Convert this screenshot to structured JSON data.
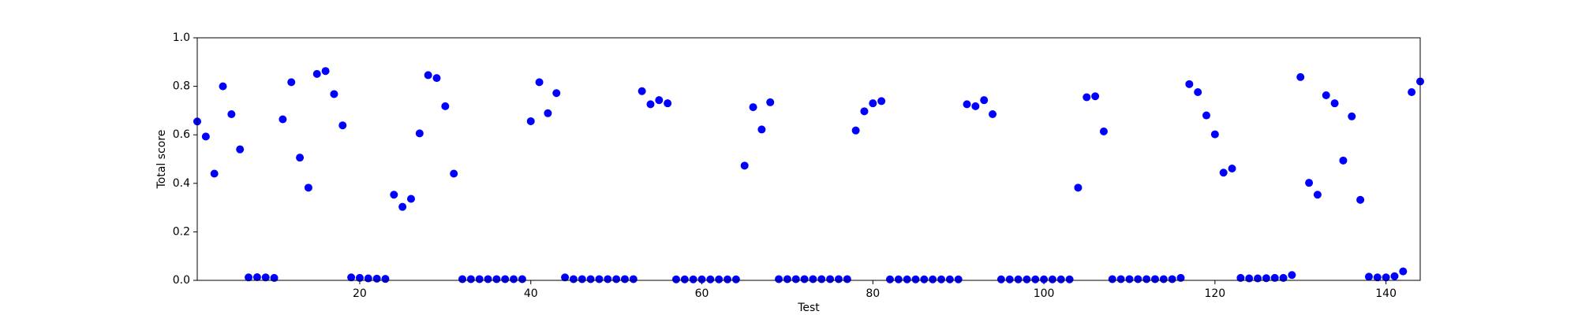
{
  "chart_data": {
    "type": "scatter",
    "xlabel": "Test",
    "ylabel": "Total score",
    "color": "#0000ff",
    "x": [
      1,
      2,
      3,
      4,
      5,
      6,
      7,
      8,
      9,
      10,
      11,
      12,
      13,
      14,
      15,
      16,
      17,
      18,
      19,
      20,
      21,
      22,
      23,
      24,
      25,
      26,
      27,
      28,
      29,
      30,
      31,
      32,
      33,
      34,
      35,
      36,
      37,
      38,
      39,
      40,
      41,
      42,
      43,
      44,
      45,
      46,
      47,
      48,
      49,
      50,
      51,
      52,
      53,
      54,
      55,
      56,
      57,
      58,
      59,
      60,
      61,
      62,
      63,
      64,
      65,
      66,
      67,
      68,
      69,
      70,
      71,
      72,
      73,
      74,
      75,
      76,
      77,
      78,
      79,
      80,
      81,
      82,
      83,
      84,
      85,
      86,
      87,
      88,
      89,
      90,
      91,
      92,
      93,
      94,
      95,
      96,
      97,
      98,
      99,
      100,
      101,
      102,
      103,
      104,
      105,
      106,
      107,
      108,
      109,
      110,
      111,
      112,
      113,
      114,
      115,
      116,
      117,
      118,
      119,
      120,
      121,
      122,
      123,
      124,
      125,
      126,
      127,
      128,
      129,
      130,
      131,
      132,
      133,
      134,
      135,
      136,
      137,
      138,
      139,
      140,
      141,
      142,
      143,
      144
    ],
    "values": [
      0.655,
      0.593,
      0.44,
      0.8,
      0.685,
      0.54,
      0.012,
      0.013,
      0.012,
      0.01,
      0.664,
      0.817,
      0.506,
      0.382,
      0.851,
      0.863,
      0.768,
      0.639,
      0.012,
      0.01,
      0.008,
      0.007,
      0.006,
      0.353,
      0.303,
      0.336,
      0.606,
      0.846,
      0.834,
      0.718,
      0.44,
      0.005,
      0.005,
      0.005,
      0.005,
      0.005,
      0.005,
      0.005,
      0.005,
      0.656,
      0.817,
      0.689,
      0.772,
      0.012,
      0.005,
      0.005,
      0.005,
      0.005,
      0.005,
      0.005,
      0.005,
      0.005,
      0.78,
      0.726,
      0.743,
      0.73,
      0.004,
      0.004,
      0.004,
      0.004,
      0.004,
      0.004,
      0.004,
      0.004,
      0.473,
      0.714,
      0.622,
      0.734,
      0.005,
      0.005,
      0.005,
      0.005,
      0.005,
      0.005,
      0.005,
      0.005,
      0.005,
      0.618,
      0.697,
      0.73,
      0.739,
      0.004,
      0.004,
      0.004,
      0.004,
      0.004,
      0.004,
      0.004,
      0.004,
      0.004,
      0.726,
      0.718,
      0.743,
      0.685,
      0.004,
      0.004,
      0.004,
      0.004,
      0.004,
      0.004,
      0.004,
      0.004,
      0.004,
      0.382,
      0.755,
      0.759,
      0.614,
      0.005,
      0.005,
      0.005,
      0.005,
      0.005,
      0.005,
      0.005,
      0.005,
      0.01,
      0.809,
      0.776,
      0.68,
      0.602,
      0.444,
      0.461,
      0.01,
      0.008,
      0.008,
      0.009,
      0.01,
      0.01,
      0.022,
      0.838,
      0.402,
      0.353,
      0.763,
      0.73,
      0.494,
      0.676,
      0.332,
      0.015,
      0.012,
      0.012,
      0.017,
      0.037,
      0.776,
      0.82
    ],
    "xlim": [
      1,
      144
    ],
    "xticks": [
      20,
      40,
      60,
      80,
      100,
      120,
      140
    ],
    "ylim": [
      0,
      1
    ],
    "yticks": [
      {
        "value": 0,
        "label": "0.0"
      },
      {
        "value": 0.2,
        "label": "0.2"
      },
      {
        "value": 0.4,
        "label": "0.4"
      },
      {
        "value": 0.6,
        "label": "0.6"
      },
      {
        "value": 0.8,
        "label": "0.8"
      },
      {
        "value": 1,
        "label": "1.0"
      }
    ]
  }
}
